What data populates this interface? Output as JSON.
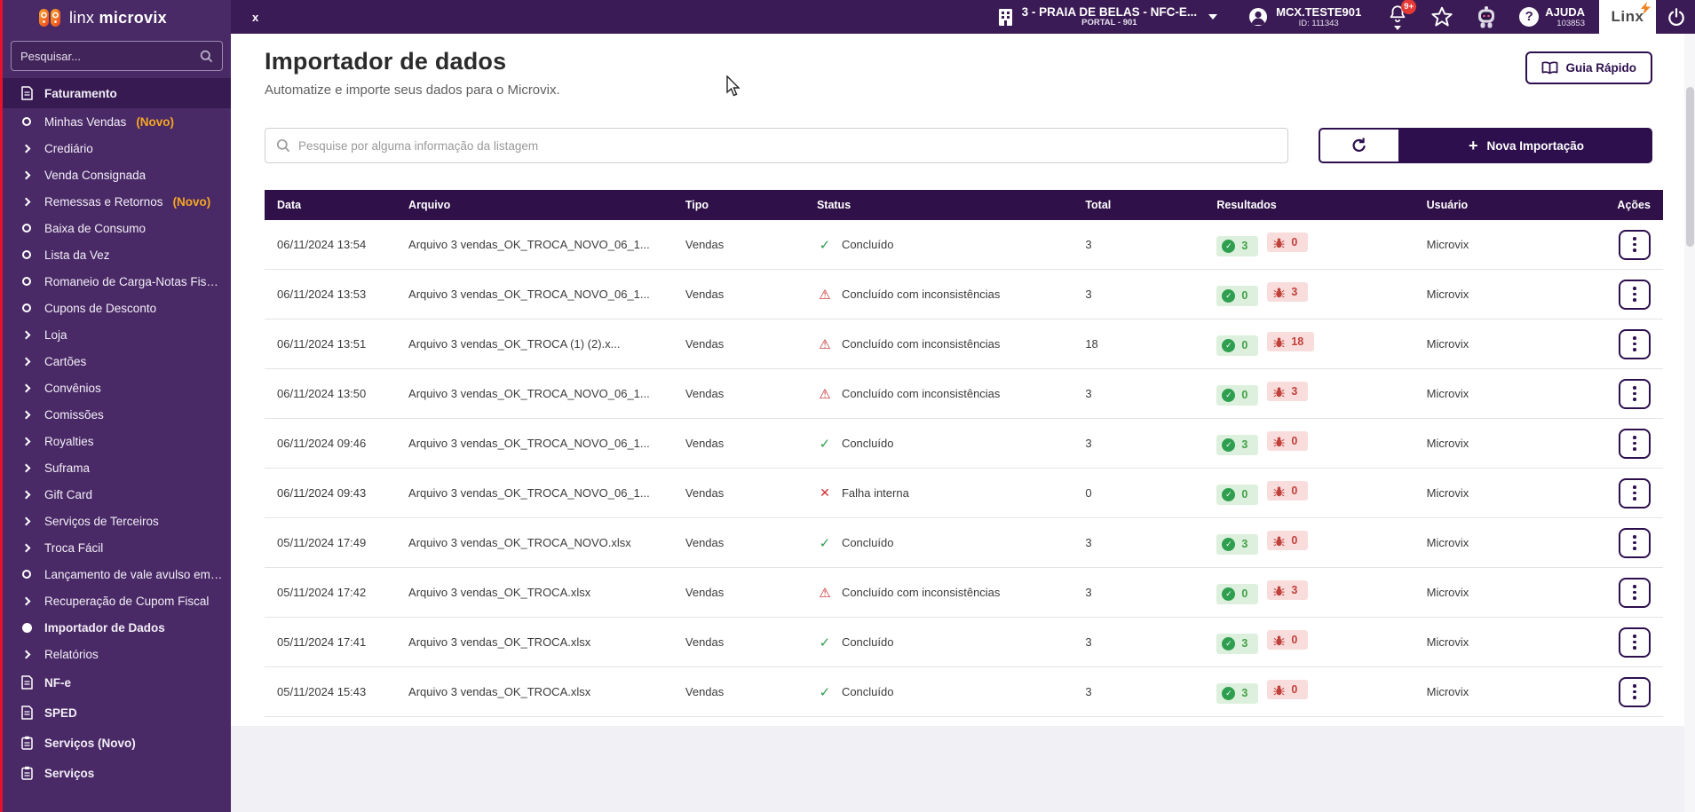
{
  "colors": {
    "topbar": "#3b1b55",
    "sidebar": "#4a2a66",
    "sidebar_active": "#371a52",
    "table_header": "#2f1048",
    "accent": "#2d0f4e",
    "novo": "#f5a623",
    "green": "#2e9e4f",
    "green_text": "#43a047",
    "green_bg": "#ddf0dd",
    "red": "#c0403a",
    "red_bg": "#f8dddc",
    "edge_red": "#e8112d",
    "page_bg": "#f1f0f5"
  },
  "topbar": {
    "tab_close": "x",
    "store": {
      "name": "3 - PRAIA DE BELAS - NFC-E...",
      "portal": "PORTAL - 901"
    },
    "user": {
      "name": "MCX.TESTE901",
      "id_label": "ID: 111343"
    },
    "notifications_badge": "9+",
    "help": {
      "label": "AJUDA",
      "code": "103853"
    },
    "brand": "Linx"
  },
  "sidebar": {
    "logo": {
      "light": "linx",
      "bold": "microvix"
    },
    "search": {
      "placeholder": "Pesquisar..."
    },
    "items": [
      {
        "label": "Faturamento",
        "icon": "doc",
        "section": true,
        "active_section": true
      },
      {
        "label": "Minhas Vendas",
        "badge": "(Novo)",
        "icon": "circle"
      },
      {
        "label": "Crediário",
        "icon": "chevron"
      },
      {
        "label": "Venda Consignada",
        "icon": "chevron"
      },
      {
        "label": "Remessas e Retornos",
        "badge": "(Novo)",
        "icon": "chevron"
      },
      {
        "label": "Baixa de Consumo",
        "icon": "circle"
      },
      {
        "label": "Lista da Vez",
        "icon": "circle"
      },
      {
        "label": "Romaneio de Carga-Notas Fiscais",
        "icon": "circle"
      },
      {
        "label": "Cupons de Desconto",
        "icon": "circle"
      },
      {
        "label": "Loja",
        "icon": "chevron"
      },
      {
        "label": "Cartões",
        "icon": "chevron"
      },
      {
        "label": "Convênios",
        "icon": "chevron"
      },
      {
        "label": "Comissões",
        "icon": "chevron"
      },
      {
        "label": "Royalties",
        "icon": "chevron"
      },
      {
        "label": "Suframa",
        "icon": "chevron"
      },
      {
        "label": "Gift Card",
        "icon": "chevron"
      },
      {
        "label": "Serviços de Terceiros",
        "icon": "chevron"
      },
      {
        "label": "Troca Fácil",
        "icon": "chevron"
      },
      {
        "label": "Lançamento de vale avulso em I...",
        "icon": "circle"
      },
      {
        "label": "Recuperação de Cupom Fiscal",
        "icon": "chevron"
      },
      {
        "label": "Importador de Dados",
        "icon": "dot",
        "active_item": true
      },
      {
        "label": "Relatórios",
        "icon": "chevron"
      },
      {
        "label": "NF-e",
        "icon": "doc",
        "section": true
      },
      {
        "label": "SPED",
        "icon": "doc",
        "section": true
      },
      {
        "label": "Serviços (Novo)",
        "icon": "clipboard",
        "section": true
      },
      {
        "label": "Serviços",
        "icon": "clipboard",
        "section": true
      }
    ]
  },
  "main": {
    "title": "Importador de dados",
    "subtitle": "Automatize e importe seus dados para o Microvix.",
    "quick_guide_label": "Guia Rápido",
    "search_placeholder": "Pesquise por alguma informação da listagem",
    "new_import_label": "Nova Importação",
    "table": {
      "columns": [
        "Data",
        "Arquivo",
        "Tipo",
        "Status",
        "Total",
        "Resultados",
        "Usuário",
        "Ações"
      ],
      "rows": [
        {
          "date": "06/11/2024 13:54",
          "file": "Arquivo 3 vendas_OK_TROCA_NOVO_06_1...",
          "type": "Vendas",
          "status": "Concluído",
          "status_kind": "ok",
          "total": "3",
          "success": "3",
          "errors": "0",
          "user": "Microvix"
        },
        {
          "date": "06/11/2024 13:53",
          "file": "Arquivo 3 vendas_OK_TROCA_NOVO_06_1...",
          "type": "Vendas",
          "status": "Concluído com inconsistências",
          "status_kind": "warn",
          "total": "3",
          "success": "0",
          "errors": "3",
          "user": "Microvix"
        },
        {
          "date": "06/11/2024 13:51",
          "file": "Arquivo 3 vendas_OK_TROCA (1) (2).x...",
          "type": "Vendas",
          "status": "Concluído com inconsistências",
          "status_kind": "warn",
          "total": "18",
          "success": "0",
          "errors": "18",
          "user": "Microvix"
        },
        {
          "date": "06/11/2024 13:50",
          "file": "Arquivo 3 vendas_OK_TROCA_NOVO_06_1...",
          "type": "Vendas",
          "status": "Concluído com inconsistências",
          "status_kind": "warn",
          "total": "3",
          "success": "0",
          "errors": "3",
          "user": "Microvix"
        },
        {
          "date": "06/11/2024 09:46",
          "file": "Arquivo 3 vendas_OK_TROCA_NOVO_06_1...",
          "type": "Vendas",
          "status": "Concluído",
          "status_kind": "ok",
          "total": "3",
          "success": "3",
          "errors": "0",
          "user": "Microvix"
        },
        {
          "date": "06/11/2024 09:43",
          "file": "Arquivo 3 vendas_OK_TROCA_NOVO_06_1...",
          "type": "Vendas",
          "status": "Falha interna",
          "status_kind": "fail",
          "total": "0",
          "success": "0",
          "errors": "0",
          "user": "Microvix"
        },
        {
          "date": "05/11/2024 17:49",
          "file": "Arquivo 3 vendas_OK_TROCA_NOVO.xlsx",
          "type": "Vendas",
          "status": "Concluído",
          "status_kind": "ok",
          "total": "3",
          "success": "3",
          "errors": "0",
          "user": "Microvix"
        },
        {
          "date": "05/11/2024 17:42",
          "file": "Arquivo 3 vendas_OK_TROCA.xlsx",
          "type": "Vendas",
          "status": "Concluído com inconsistências",
          "status_kind": "warn",
          "total": "3",
          "success": "0",
          "errors": "3",
          "user": "Microvix"
        },
        {
          "date": "05/11/2024 17:41",
          "file": "Arquivo 3 vendas_OK_TROCA.xlsx",
          "type": "Vendas",
          "status": "Concluído",
          "status_kind": "ok",
          "total": "3",
          "success": "3",
          "errors": "0",
          "user": "Microvix"
        },
        {
          "date": "05/11/2024 15:43",
          "file": "Arquivo 3 vendas_OK_TROCA.xlsx",
          "type": "Vendas",
          "status": "Concluído",
          "status_kind": "ok",
          "total": "3",
          "success": "3",
          "errors": "0",
          "user": "Microvix"
        }
      ]
    }
  }
}
